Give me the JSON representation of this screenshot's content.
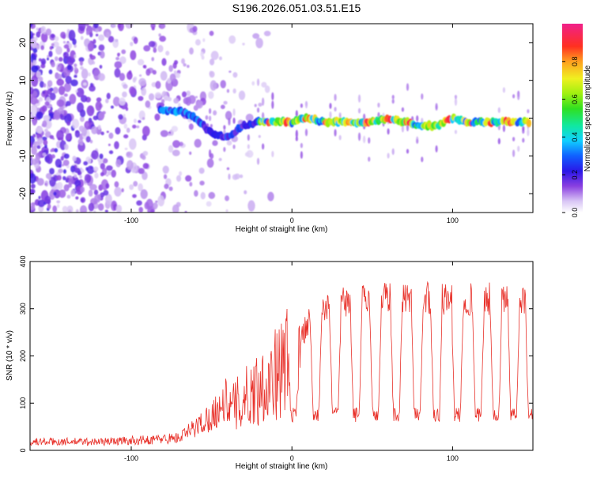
{
  "title": "S196.2026.051.03.51.E15",
  "chart_data": [
    {
      "type": "heatmap",
      "xlabel": "Height of straight line (km)",
      "ylabel": "Frequency (Hz)",
      "xlim": [
        -163,
        150
      ],
      "ylim": [
        -25,
        25
      ],
      "x_ticks": [
        -100,
        0,
        100
      ],
      "y_ticks": [
        -20,
        -10,
        0,
        10,
        20
      ],
      "colorbar": {
        "label": "Normalized spectral amplitude",
        "range": [
          0,
          1
        ],
        "ticks": [
          "0.0",
          "0.2",
          "0.4",
          "0.6",
          "0.8"
        ]
      },
      "ridge_freq_by_height": {
        "x": [
          -80,
          -70,
          -60,
          -50,
          -40,
          -30,
          -20,
          -10,
          0,
          10,
          20,
          30,
          40,
          50,
          60,
          70,
          80,
          90,
          100,
          110,
          120,
          130,
          140,
          148
        ],
        "y": [
          2,
          2,
          0,
          -4,
          -5,
          -2,
          -1,
          -1,
          -1,
          0,
          -1,
          -1,
          -1,
          -1,
          0,
          -1,
          -2,
          -2,
          0,
          -1,
          -1,
          -1,
          -1,
          -1
        ]
      }
    },
    {
      "type": "line",
      "xlabel": "Height of straight line (km)",
      "ylabel": "SNR (10 * v/v)",
      "xlim": [
        -163,
        150
      ],
      "ylim": [
        0,
        400
      ],
      "x_ticks": [
        -100,
        0,
        100
      ],
      "y_ticks": [
        0,
        100,
        200,
        300,
        400
      ],
      "color": "#e8312a",
      "envelope": {
        "x": [
          -163,
          -120,
          -90,
          -70,
          -60,
          -50,
          -40,
          -30,
          -20,
          -10,
          -5,
          0,
          5,
          10,
          20,
          30,
          40,
          60,
          80,
          100,
          120,
          140,
          150
        ],
        "y": [
          15,
          15,
          18,
          22,
          40,
          60,
          90,
          120,
          150,
          180,
          200,
          230,
          250,
          270,
          290,
          310,
          320,
          325,
          325,
          320,
          320,
          325,
          320
        ]
      },
      "dips_x": [
        1,
        15,
        27,
        40,
        52,
        65,
        78,
        90,
        103,
        116,
        127,
        138,
        149
      ],
      "dip_depth": 75
    }
  ]
}
